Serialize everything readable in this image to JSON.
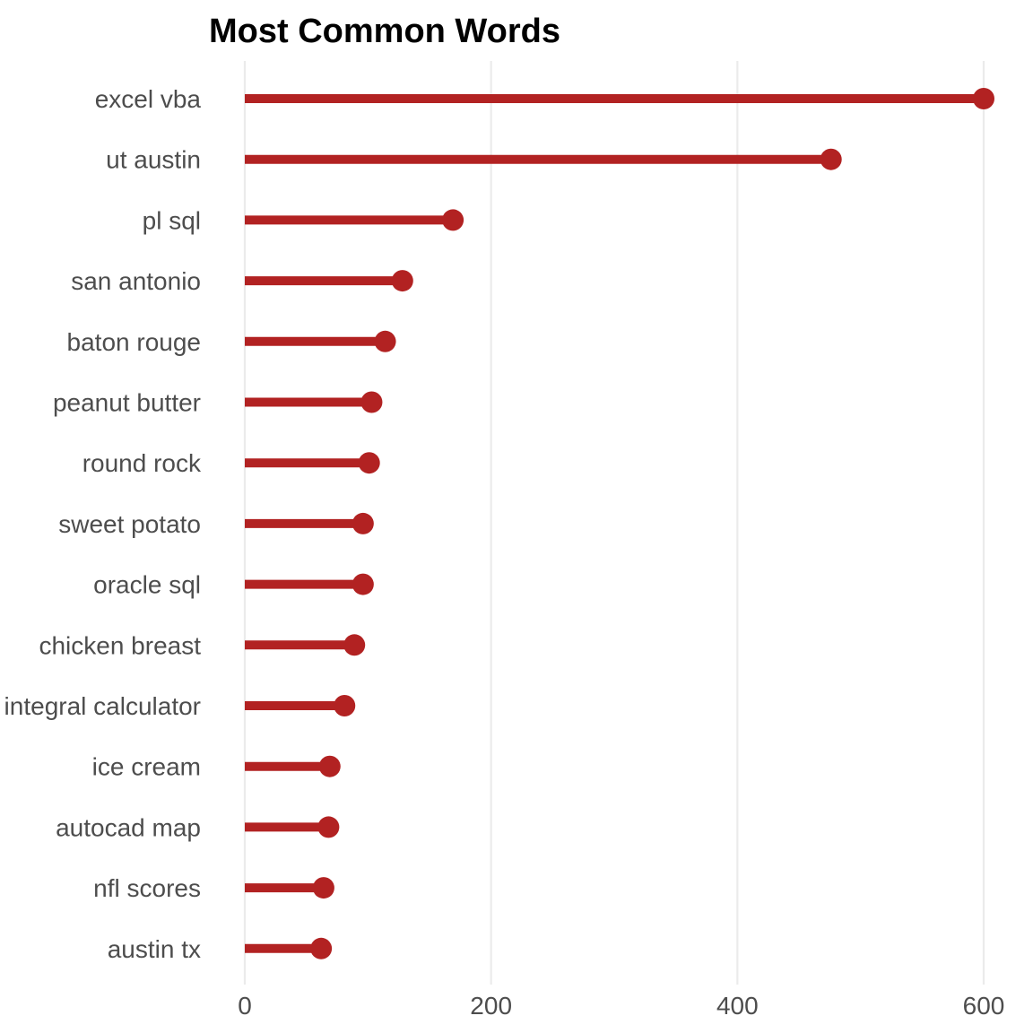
{
  "chart_data": {
    "type": "lollipop",
    "title": "Most Common Words",
    "xlabel": "",
    "ylabel": "",
    "xlim": [
      0,
      600
    ],
    "x_ticks": [
      0,
      200,
      400,
      600
    ],
    "x_tick_labels": [
      "0",
      "200",
      "400",
      "600"
    ],
    "grid": "vertical major gridlines",
    "categories": [
      "excel vba",
      "ut austin",
      "pl sql",
      "san antonio",
      "baton rouge",
      "peanut butter",
      "round rock",
      "sweet potato",
      "oracle sql",
      "chicken breast",
      "integral calculator",
      "ice cream",
      "autocad map",
      "nfl scores",
      "austin tx"
    ],
    "values": [
      600,
      476,
      169,
      128,
      114,
      103,
      101,
      96,
      96,
      89,
      81,
      69,
      68,
      64,
      62
    ],
    "color": "#b22222"
  }
}
